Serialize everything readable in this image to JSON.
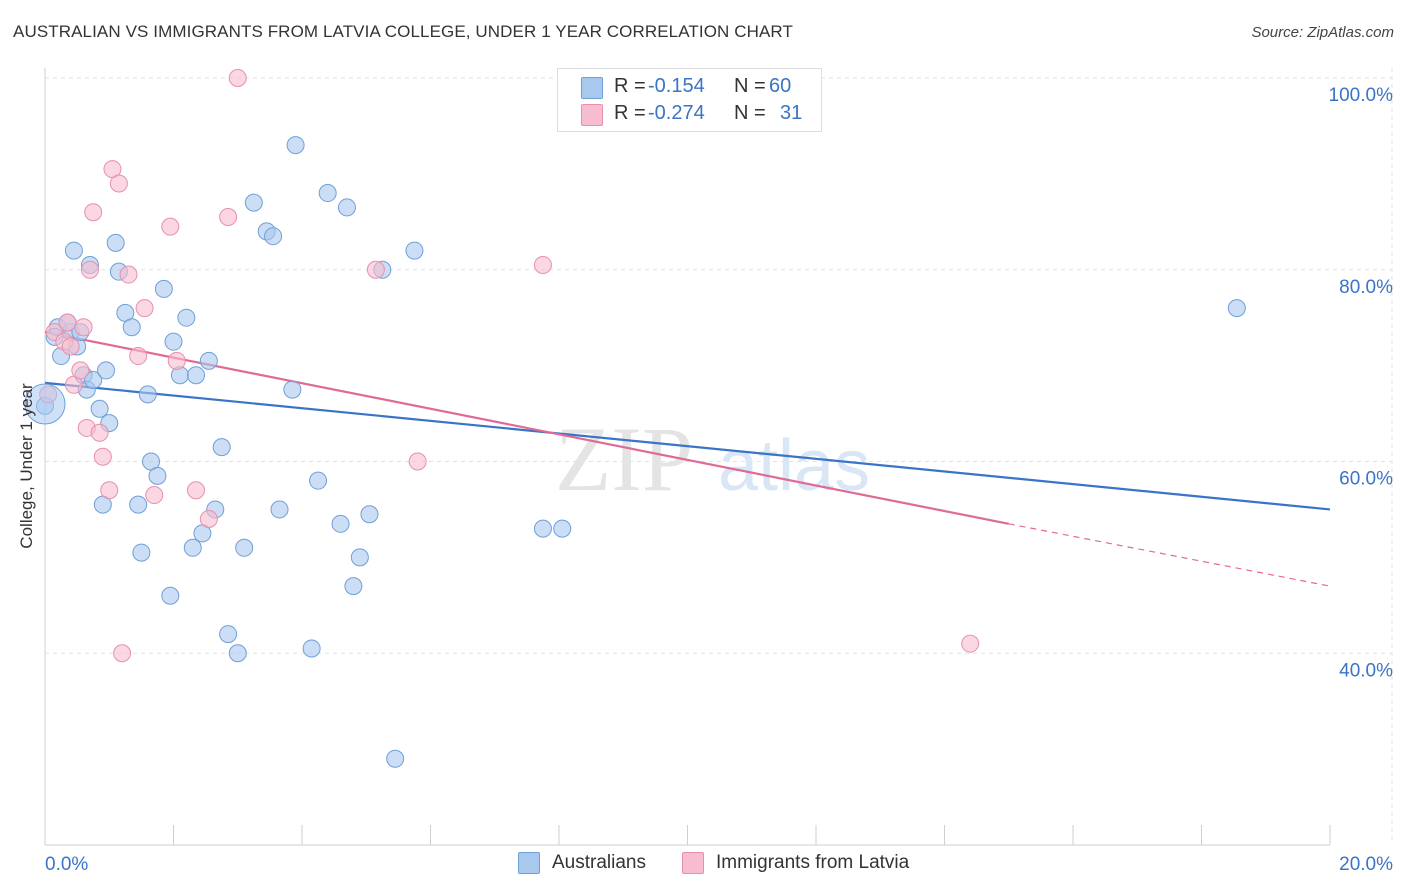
{
  "title": "AUSTRALIAN VS IMMIGRANTS FROM LATVIA COLLEGE, UNDER 1 YEAR CORRELATION CHART",
  "source": "Source: ZipAtlas.com",
  "watermark": {
    "zip": "ZIP",
    "atlas": "atlas"
  },
  "colors": {
    "blue_fill": "#a8c8ee",
    "blue_stroke": "#6f9fd8",
    "blue_line": "#3a74c6",
    "pink_fill": "#f7bccf",
    "pink_stroke": "#e88fac",
    "pink_line": "#e06a96",
    "tick_label": "#3a74c6",
    "grid": "#dde3ea"
  },
  "legend": {
    "rows": [
      {
        "r_label": "R =",
        "r_value": "-0.154",
        "n_label": "N =",
        "n_value": "60",
        "swatch": "#a8c8ee",
        "swatch_border": "#6f9fd8"
      },
      {
        "r_label": "R =",
        "r_value": "-0.274",
        "n_label": "N =",
        "n_value": "31",
        "swatch": "#f7bccf",
        "swatch_border": "#e88fac"
      }
    ]
  },
  "bottom_legend": [
    {
      "label": "Australians",
      "swatch": "#a8c8ee",
      "border": "#6f9fd8"
    },
    {
      "label": "Immigrants from Latvia",
      "swatch": "#f7bccf",
      "border": "#e88fac"
    }
  ],
  "chart_data": {
    "type": "scatter",
    "title": "AUSTRALIAN VS IMMIGRANTS FROM LATVIA COLLEGE, UNDER 1 YEAR CORRELATION CHART",
    "xlabel": "",
    "ylabel": "College, Under 1 year",
    "xlim": [
      0,
      20
    ],
    "ylim": [
      20,
      100
    ],
    "x_tick_labels": [
      "0.0%",
      "20.0%"
    ],
    "y_ticks": [
      40,
      60,
      80,
      100
    ],
    "y_tick_labels": [
      "40.0%",
      "60.0%",
      "80.0%",
      "100.0%"
    ],
    "grid": true,
    "legend_placement": "top-center",
    "series": [
      {
        "name": "Australians",
        "r": -0.154,
        "n": 60,
        "trend": {
          "x": [
            0.0,
            20.0
          ],
          "y": [
            68.2,
            55.0
          ]
        },
        "points": [
          [
            0.0,
            65.8
          ],
          [
            0.2,
            74.0
          ],
          [
            0.25,
            71.0
          ],
          [
            0.45,
            82.0
          ],
          [
            0.5,
            72.0
          ],
          [
            0.4,
            73.5
          ],
          [
            0.6,
            69.0
          ],
          [
            0.65,
            67.5
          ],
          [
            0.7,
            80.5
          ],
          [
            0.85,
            65.5
          ],
          [
            0.9,
            55.5
          ],
          [
            1.0,
            64.0
          ],
          [
            1.1,
            82.8
          ],
          [
            1.15,
            79.8
          ],
          [
            1.25,
            75.5
          ],
          [
            1.35,
            74.0
          ],
          [
            1.45,
            55.5
          ],
          [
            1.5,
            50.5
          ],
          [
            1.65,
            60.0
          ],
          [
            1.75,
            58.5
          ],
          [
            1.85,
            78.0
          ],
          [
            1.95,
            46.0
          ],
          [
            2.0,
            72.5
          ],
          [
            2.1,
            69.0
          ],
          [
            2.2,
            75.0
          ],
          [
            2.3,
            51.0
          ],
          [
            2.35,
            69.0
          ],
          [
            2.45,
            52.5
          ],
          [
            2.55,
            70.5
          ],
          [
            2.65,
            55.0
          ],
          [
            2.75,
            61.5
          ],
          [
            2.85,
            42.0
          ],
          [
            3.0,
            40.0
          ],
          [
            3.1,
            51.0
          ],
          [
            3.25,
            87.0
          ],
          [
            3.45,
            84.0
          ],
          [
            3.55,
            83.5
          ],
          [
            3.65,
            55.0
          ],
          [
            3.85,
            67.5
          ],
          [
            3.9,
            93.0
          ],
          [
            4.15,
            40.5
          ],
          [
            4.25,
            58.0
          ],
          [
            4.4,
            88.0
          ],
          [
            4.6,
            53.5
          ],
          [
            4.7,
            86.5
          ],
          [
            4.8,
            47.0
          ],
          [
            4.9,
            50.0
          ],
          [
            5.05,
            54.5
          ],
          [
            5.25,
            80.0
          ],
          [
            5.45,
            29.0
          ],
          [
            5.75,
            82.0
          ],
          [
            7.75,
            53.0
          ],
          [
            8.05,
            53.0
          ],
          [
            18.55,
            76.0
          ],
          [
            0.55,
            73.5
          ],
          [
            0.35,
            74.5
          ],
          [
            0.75,
            68.5
          ],
          [
            1.6,
            67.0
          ],
          [
            0.95,
            69.5
          ],
          [
            0.15,
            73.0
          ]
        ]
      },
      {
        "name": "Immigrants from Latvia",
        "r": -0.274,
        "n": 31,
        "trend": {
          "x": [
            0.0,
            15.0
          ],
          "y": [
            73.5,
            53.5
          ]
        },
        "trend_dashed": {
          "x": [
            15.0,
            20.0
          ],
          "y": [
            53.5,
            47.0
          ]
        },
        "points": [
          [
            0.05,
            67.0
          ],
          [
            0.15,
            73.5
          ],
          [
            0.3,
            72.5
          ],
          [
            0.35,
            74.5
          ],
          [
            0.45,
            68.0
          ],
          [
            0.55,
            69.5
          ],
          [
            0.65,
            63.5
          ],
          [
            0.7,
            80.0
          ],
          [
            0.75,
            86.0
          ],
          [
            0.85,
            63.0
          ],
          [
            0.9,
            60.5
          ],
          [
            1.0,
            57.0
          ],
          [
            1.05,
            90.5
          ],
          [
            1.15,
            89.0
          ],
          [
            1.2,
            40.0
          ],
          [
            1.3,
            79.5
          ],
          [
            1.45,
            71.0
          ],
          [
            1.55,
            76.0
          ],
          [
            1.7,
            56.5
          ],
          [
            1.95,
            84.5
          ],
          [
            2.05,
            70.5
          ],
          [
            2.35,
            57.0
          ],
          [
            2.55,
            54.0
          ],
          [
            2.85,
            85.5
          ],
          [
            3.0,
            100.0
          ],
          [
            5.15,
            80.0
          ],
          [
            5.8,
            60.0
          ],
          [
            7.75,
            80.5
          ],
          [
            14.4,
            41.0
          ],
          [
            0.4,
            72.0
          ],
          [
            0.6,
            74.0
          ]
        ]
      }
    ]
  }
}
